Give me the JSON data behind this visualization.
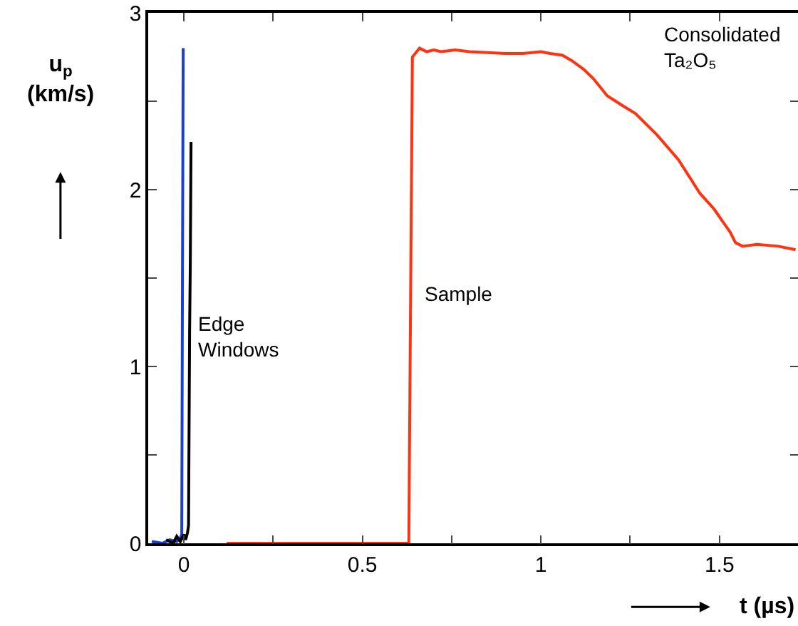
{
  "chart_data": {
    "type": "line",
    "xlabel": "t (µs)",
    "ylabel": "u$_{p}$ (km/s)",
    "series": [
      {
        "color": "#1a3fd6",
        "x": [
          -0.09,
          -0.06,
          -0.04,
          -0.02,
          -0.01,
          -0.006,
          -0.004,
          -0.002
        ],
        "values": [
          0.01,
          0.0,
          0.02,
          0.01,
          0.03,
          0.05,
          1.5,
          2.8
        ]
      },
      {
        "color": "#000000",
        "x": [
          -0.05,
          -0.03,
          -0.02,
          -0.01,
          0.0,
          0.005,
          0.01,
          0.013,
          0.016,
          0.018,
          0.02
        ],
        "values": [
          0.02,
          0.0,
          0.04,
          0.01,
          0.05,
          0.02,
          0.06,
          0.1,
          1.2,
          1.6,
          2.27
        ]
      },
      {
        "color": "#ff3311",
        "x": [
          0.12,
          0.3,
          0.5,
          0.63,
          0.635,
          0.64,
          0.66,
          0.68,
          0.7,
          0.72,
          0.76,
          0.8,
          0.9,
          0.95,
          1.0,
          1.026,
          1.06,
          1.086,
          1.12,
          1.146,
          1.186,
          1.225,
          1.265,
          1.325,
          1.385,
          1.445,
          1.485,
          1.509,
          1.53,
          1.545,
          1.565,
          1.605,
          1.665,
          1.713
        ],
        "values": [
          0.0,
          0.0,
          0.0,
          0.0,
          1.4,
          2.75,
          2.8,
          2.78,
          2.79,
          2.78,
          2.79,
          2.78,
          2.77,
          2.77,
          2.78,
          2.77,
          2.76,
          2.73,
          2.68,
          2.63,
          2.53,
          2.48,
          2.43,
          2.31,
          2.17,
          1.98,
          1.89,
          1.82,
          1.76,
          1.7,
          1.68,
          1.69,
          1.68,
          1.66
        ]
      }
    ],
    "xlim": [
      -0.1,
      1.72
    ],
    "ylim": [
      0,
      3
    ],
    "xticks": [
      0,
      {
        "value": 0.25,
        "label": null
      },
      0.5,
      {
        "value": 0.75,
        "label": null
      },
      1,
      {
        "value": 1.25,
        "label": null
      },
      1.5
    ],
    "yticks": [
      0,
      {
        "value": 0.5,
        "label": null
      },
      1,
      {
        "value": 1.5,
        "label": null
      },
      2,
      {
        "value": 2.5,
        "label": null
      },
      3
    ],
    "grid": false,
    "marker": "none",
    "line_style": "solid",
    "annotations": [
      "Edge Windows",
      "Sample",
      "Consolidated Ta₂O₅"
    ]
  }
}
